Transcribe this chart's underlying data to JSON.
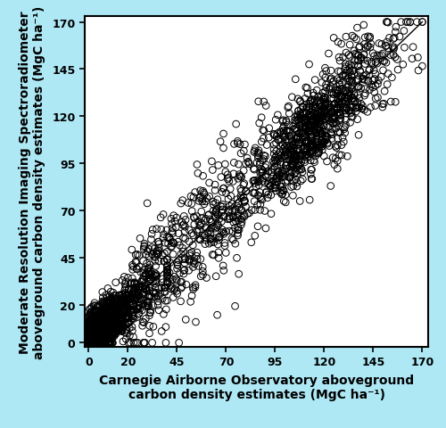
{
  "title": "",
  "xlabel": "Carnegie Airborne Observatory aboveground\ncarbon density estimates (MgC ha⁻¹)",
  "ylabel": "Moderate Resolution Imaging Spectroradiometer\naboveground carbon density estimates (MgC ha⁻¹)",
  "xlim": [
    -2,
    173
  ],
  "ylim": [
    -2,
    173
  ],
  "xticks": [
    0,
    20,
    45,
    70,
    95,
    120,
    145,
    170
  ],
  "yticks": [
    0,
    20,
    45,
    70,
    95,
    120,
    145,
    170
  ],
  "background_color": "#aee8f5",
  "plot_bg_color": "#ffffff",
  "line_color": "#000000",
  "marker_facecolor": "none",
  "marker_edgecolor": "#000000",
  "marker_size": 5.5,
  "marker_linewidth": 0.7,
  "n_points": 2800,
  "seed": 77,
  "xlabel_fontsize": 10,
  "ylabel_fontsize": 10,
  "tick_fontsize": 9,
  "label_fontweight": "bold"
}
